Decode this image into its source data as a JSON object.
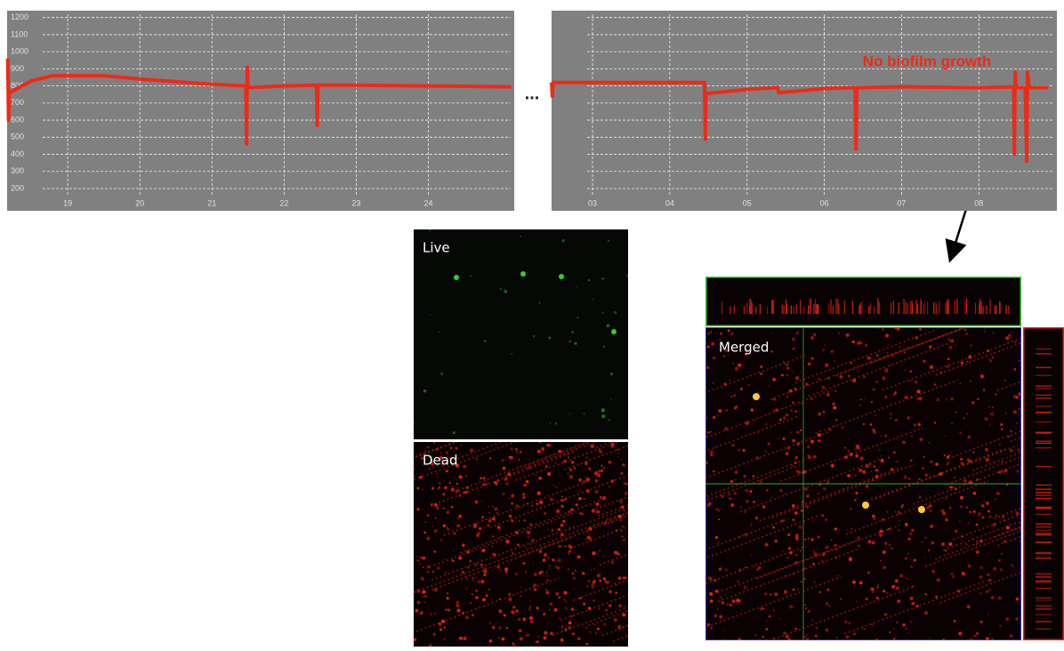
{
  "chart_data": [
    {
      "type": "line",
      "color": "#ee2a18",
      "x": [
        18.17,
        18.18,
        18.19,
        18.5,
        18.8,
        19.5,
        20,
        21,
        21.47,
        21.48,
        21.49,
        21.5,
        22,
        22.45,
        22.46,
        22.47,
        23,
        24,
        25.15
      ],
      "values": [
        960,
        600,
        760,
        830,
        860,
        860,
        840,
        810,
        800,
        460,
        910,
        790,
        800,
        805,
        570,
        805,
        805,
        800,
        795
      ],
      "xlim": [
        18.16,
        25.19
      ],
      "ylim": [
        70,
        1240
      ],
      "xticks": [
        19,
        20,
        21,
        22,
        23,
        24
      ],
      "yticks": [
        200,
        300,
        400,
        500,
        600,
        700,
        800,
        900,
        1000,
        1100,
        1200
      ],
      "ytick_labels": true,
      "grid": true
    },
    {
      "type": "line",
      "color": "#ee2a18",
      "x": [
        2.47,
        2.48,
        2.49,
        4.45,
        4.46,
        4.47,
        5,
        5.4,
        5.41,
        6,
        6.4,
        6.41,
        6.42,
        7,
        8,
        8.45,
        8.46,
        8.47,
        8.48,
        8.6,
        8.62,
        8.63,
        8.65,
        8.9
      ],
      "values": [
        820,
        740,
        820,
        820,
        490,
        755,
        780,
        790,
        760,
        785,
        790,
        430,
        790,
        795,
        790,
        795,
        400,
        880,
        790,
        790,
        360,
        880,
        790,
        790
      ],
      "xlim": [
        2.47,
        9.01
      ],
      "ylim": [
        70,
        1240
      ],
      "xticks": [
        {
          "value": 3,
          "label": "03"
        },
        {
          "value": 4,
          "label": "04"
        },
        {
          "value": 5,
          "label": "05"
        },
        {
          "value": 6,
          "label": "06"
        },
        {
          "value": 7,
          "label": "07"
        },
        {
          "value": 8,
          "label": "08"
        }
      ],
      "yticks": [
        200,
        300,
        400,
        500,
        600,
        700,
        800,
        900,
        1000,
        1100,
        1200
      ],
      "ytick_labels": false,
      "grid": true,
      "annotation": "No biofilm growth"
    }
  ],
  "ellipsis": "...",
  "panels": [
    {
      "label": "Live"
    },
    {
      "label": "Dead"
    },
    {
      "label": "Merged"
    }
  ]
}
